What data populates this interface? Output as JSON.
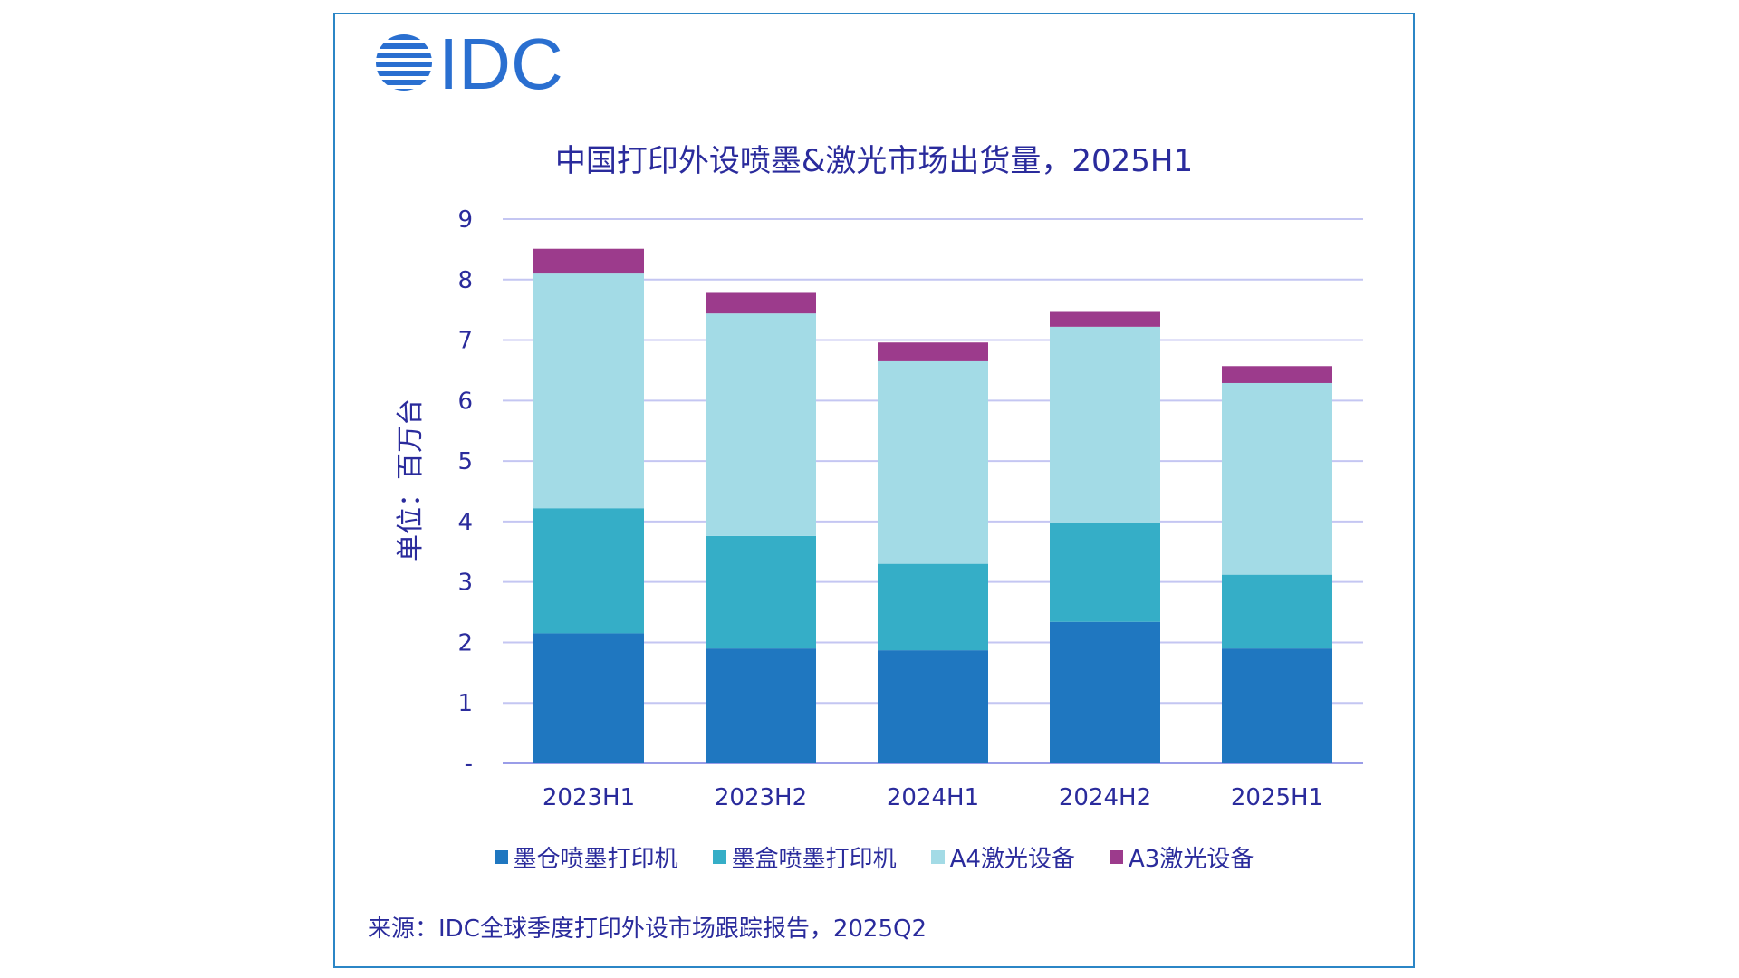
{
  "logo": {
    "text": "IDC",
    "color": "#2a6fd0"
  },
  "colors": {
    "text": "#2a2b9c",
    "frame": "#2b86c6",
    "grid": "#c4c6f2",
    "series": [
      "#1f77c0",
      "#35aec7",
      "#a3dbe6",
      "#9c3b8c"
    ]
  },
  "footer": {
    "source": "来源：IDC全球季度打印外设市场跟踪报告，2025Q2"
  },
  "chart_data": {
    "type": "bar",
    "stacked": true,
    "title": "中国打印外设喷墨&激光市场出货量，2025H1",
    "ylabel": "单位：百万台",
    "xlabel": "",
    "categories": [
      "2023H1",
      "2023H2",
      "2024H1",
      "2024H2",
      "2025H1"
    ],
    "ylim": [
      0,
      9
    ],
    "yticks": [
      "-",
      "1",
      "2",
      "3",
      "4",
      "5",
      "6",
      "7",
      "8",
      "9"
    ],
    "grid": true,
    "legend_position": "bottom",
    "series": [
      {
        "name": "墨仓喷墨打印机",
        "values": [
          2.15,
          1.9,
          1.87,
          2.34,
          1.9
        ]
      },
      {
        "name": "墨盒喷墨打印机",
        "values": [
          2.07,
          1.86,
          1.43,
          1.63,
          1.22
        ]
      },
      {
        "name": "A4激光设备",
        "values": [
          3.88,
          3.68,
          3.35,
          3.25,
          3.17
        ]
      },
      {
        "name": "A3激光设备",
        "values": [
          0.41,
          0.34,
          0.31,
          0.26,
          0.28
        ]
      }
    ]
  }
}
